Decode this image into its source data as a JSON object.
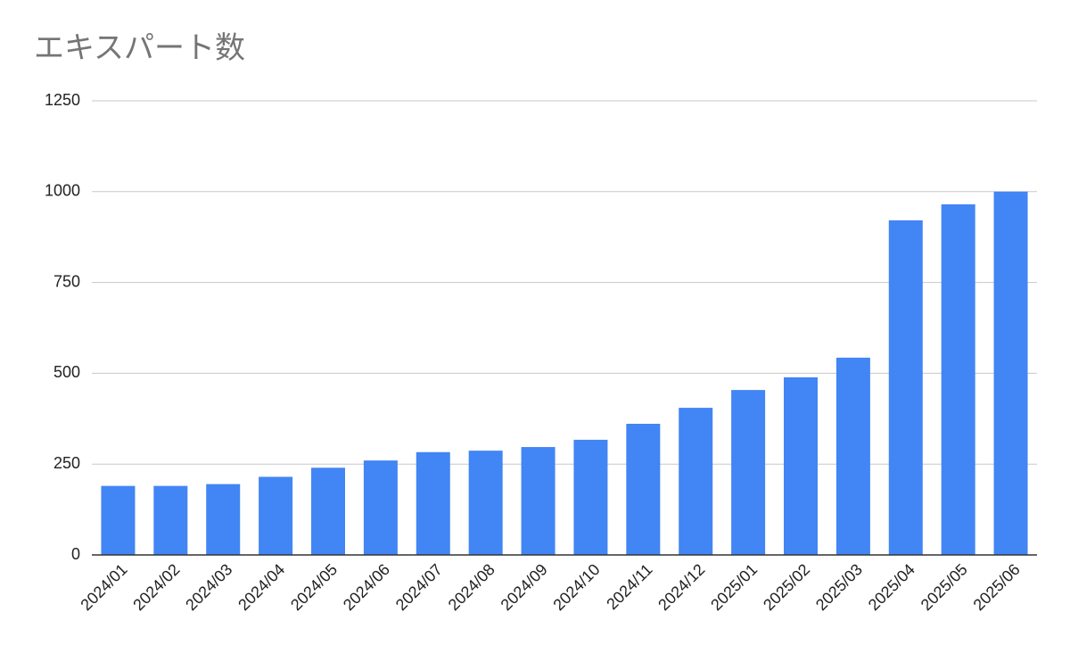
{
  "chart_data": {
    "type": "bar",
    "title": "エキスパート数",
    "categories": [
      "2024/01",
      "2024/02",
      "2024/03",
      "2024/04",
      "2024/05",
      "2024/06",
      "2024/07",
      "2024/08",
      "2024/09",
      "2024/10",
      "2024/11",
      "2024/12",
      "2025/01",
      "2025/02",
      "2025/03",
      "2025/04",
      "2025/05",
      "2025/06"
    ],
    "values": [
      190,
      190,
      195,
      215,
      240,
      260,
      283,
      287,
      297,
      317,
      361,
      405,
      454,
      489,
      543,
      921,
      965,
      1000
    ],
    "color": "#4285f4",
    "ylim": [
      0,
      1250
    ],
    "yticks": [
      0,
      250,
      500,
      750,
      1000,
      1250
    ],
    "grid": true
  }
}
